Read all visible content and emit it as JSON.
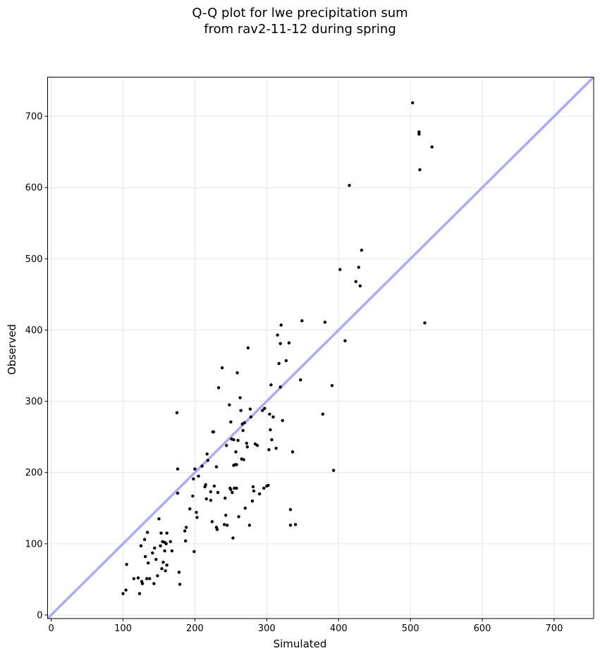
{
  "chart_data": {
    "type": "scatter",
    "title": "Q-Q plot for lwe precipitation sum\nfrom rav2-11-12 during spring",
    "title_lines": [
      "Q-Q plot for lwe precipitation sum",
      "from rav2-11-12 during spring"
    ],
    "xlabel": "Simulated",
    "ylabel": "Observed",
    "xlim": [
      -5,
      755
    ],
    "ylim": [
      -5,
      755
    ],
    "xticks": [
      0,
      100,
      200,
      300,
      400,
      500,
      600,
      700
    ],
    "yticks": [
      0,
      100,
      200,
      300,
      400,
      500,
      600,
      700
    ],
    "grid": true,
    "reference_line": {
      "from": [
        -5,
        -5
      ],
      "to": [
        755,
        755
      ],
      "color": "#aaaaff"
    },
    "marker_color": "#000000",
    "points": [
      [
        100,
        30
      ],
      [
        104,
        35
      ],
      [
        105,
        71
      ],
      [
        115,
        51
      ],
      [
        121,
        52
      ],
      [
        123,
        30
      ],
      [
        125,
        97
      ],
      [
        126,
        47
      ],
      [
        127,
        44
      ],
      [
        130,
        106
      ],
      [
        131,
        82
      ],
      [
        133,
        51
      ],
      [
        134,
        116
      ],
      [
        135,
        73
      ],
      [
        137,
        51
      ],
      [
        141,
        87
      ],
      [
        143,
        44
      ],
      [
        144,
        94
      ],
      [
        146,
        78
      ],
      [
        148,
        55
      ],
      [
        150,
        135
      ],
      [
        152,
        97
      ],
      [
        153,
        115
      ],
      [
        154,
        65
      ],
      [
        155,
        103
      ],
      [
        156,
        74
      ],
      [
        158,
        102
      ],
      [
        158,
        90
      ],
      [
        159,
        62
      ],
      [
        160,
        100
      ],
      [
        161,
        115
      ],
      [
        161,
        70
      ],
      [
        166,
        103
      ],
      [
        168,
        90
      ],
      [
        175,
        284
      ],
      [
        176,
        171
      ],
      [
        176,
        205
      ],
      [
        178,
        60
      ],
      [
        179,
        43
      ],
      [
        186,
        118
      ],
      [
        187,
        104
      ],
      [
        188,
        123
      ],
      [
        193,
        149
      ],
      [
        197,
        167
      ],
      [
        198,
        191
      ],
      [
        199,
        89
      ],
      [
        200,
        205
      ],
      [
        202,
        144
      ],
      [
        203,
        137
      ],
      [
        205,
        195
      ],
      [
        210,
        209
      ],
      [
        214,
        180
      ],
      [
        215,
        183
      ],
      [
        216,
        163
      ],
      [
        217,
        226
      ],
      [
        218,
        217
      ],
      [
        222,
        173
      ],
      [
        222,
        161
      ],
      [
        224,
        131
      ],
      [
        225,
        257
      ],
      [
        226,
        257
      ],
      [
        227,
        181
      ],
      [
        230,
        208
      ],
      [
        230,
        123
      ],
      [
        231,
        120
      ],
      [
        232,
        172
      ],
      [
        233,
        319
      ],
      [
        238,
        347
      ],
      [
        241,
        127
      ],
      [
        242,
        164
      ],
      [
        243,
        140
      ],
      [
        244,
        238
      ],
      [
        245,
        126
      ],
      [
        248,
        295
      ],
      [
        249,
        178
      ],
      [
        250,
        271
      ],
      [
        250,
        176
      ],
      [
        251,
        247
      ],
      [
        252,
        172
      ],
      [
        253,
        108
      ],
      [
        254,
        210
      ],
      [
        254,
        246
      ],
      [
        255,
        178
      ],
      [
        256,
        211
      ],
      [
        257,
        229
      ],
      [
        258,
        211
      ],
      [
        258,
        178
      ],
      [
        259,
        340
      ],
      [
        260,
        245
      ],
      [
        261,
        138
      ],
      [
        263,
        305
      ],
      [
        264,
        287
      ],
      [
        265,
        219
      ],
      [
        266,
        268
      ],
      [
        267,
        259
      ],
      [
        268,
        218
      ],
      [
        269,
        270
      ],
      [
        270,
        150
      ],
      [
        272,
        241
      ],
      [
        273,
        236
      ],
      [
        274,
        375
      ],
      [
        276,
        126
      ],
      [
        277,
        289
      ],
      [
        278,
        278
      ],
      [
        280,
        160
      ],
      [
        281,
        180
      ],
      [
        282,
        174
      ],
      [
        284,
        240
      ],
      [
        287,
        238
      ],
      [
        290,
        170
      ],
      [
        294,
        287
      ],
      [
        296,
        178
      ],
      [
        297,
        290
      ],
      [
        300,
        181
      ],
      [
        302,
        182
      ],
      [
        303,
        232
      ],
      [
        304,
        282
      ],
      [
        305,
        260
      ],
      [
        306,
        323
      ],
      [
        307,
        246
      ],
      [
        309,
        278
      ],
      [
        313,
        234
      ],
      [
        315,
        393
      ],
      [
        317,
        353
      ],
      [
        319,
        381
      ],
      [
        319,
        320
      ],
      [
        320,
        407
      ],
      [
        322,
        273
      ],
      [
        327,
        357
      ],
      [
        331,
        382
      ],
      [
        333,
        148
      ],
      [
        333,
        126
      ],
      [
        336,
        229
      ],
      [
        340,
        127
      ],
      [
        347,
        330
      ],
      [
        349,
        413
      ],
      [
        378,
        282
      ],
      [
        381,
        411
      ],
      [
        391,
        322
      ],
      [
        393,
        203
      ],
      [
        402,
        485
      ],
      [
        409,
        385
      ],
      [
        415,
        603
      ],
      [
        424,
        468
      ],
      [
        428,
        488
      ],
      [
        430,
        462
      ],
      [
        432,
        512
      ],
      [
        503,
        719
      ],
      [
        512,
        675
      ],
      [
        512,
        678
      ],
      [
        513,
        625
      ],
      [
        520,
        410
      ],
      [
        530,
        657
      ]
    ]
  }
}
